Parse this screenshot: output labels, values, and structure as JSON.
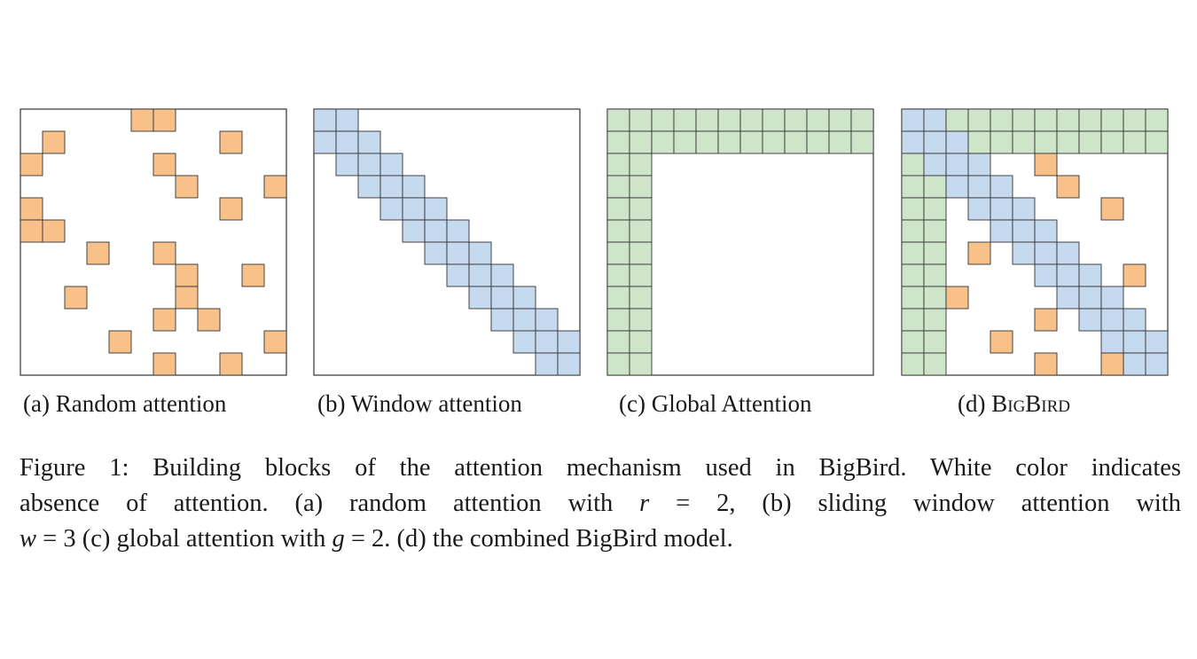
{
  "colors": {
    "random": "#f9c18a",
    "window": "#c5d9ef",
    "global": "#cfe5c9",
    "grid_line": "#333333"
  },
  "matrix_size": 12,
  "panels": [
    {
      "key": "a",
      "label_prefix": "(a) ",
      "label_text": "Random attention",
      "random_cells": [
        [
          0,
          5
        ],
        [
          0,
          6
        ],
        [
          1,
          1
        ],
        [
          1,
          9
        ],
        [
          2,
          0
        ],
        [
          2,
          6
        ],
        [
          3,
          7
        ],
        [
          3,
          11
        ],
        [
          4,
          0
        ],
        [
          4,
          9
        ],
        [
          5,
          0
        ],
        [
          5,
          1
        ],
        [
          6,
          3
        ],
        [
          6,
          6
        ],
        [
          7,
          7
        ],
        [
          7,
          10
        ],
        [
          8,
          2
        ],
        [
          8,
          7
        ],
        [
          9,
          6
        ],
        [
          9,
          8
        ],
        [
          10,
          4
        ],
        [
          10,
          11
        ],
        [
          11,
          6
        ],
        [
          11,
          9
        ]
      ]
    },
    {
      "key": "b",
      "label_prefix": "(b) ",
      "label_text": "Window attention",
      "window_size": 3
    },
    {
      "key": "c",
      "label_prefix": "(c) ",
      "label_text": "Global Attention",
      "global_size": 2
    },
    {
      "key": "d",
      "label_prefix": "(d) ",
      "label_text": "BigBird",
      "window_size": 3,
      "global_size": 2,
      "random_cells": [
        [
          2,
          6
        ],
        [
          3,
          7
        ],
        [
          4,
          9
        ],
        [
          6,
          3
        ],
        [
          7,
          10
        ],
        [
          8,
          2
        ],
        [
          9,
          6
        ],
        [
          10,
          4
        ],
        [
          11,
          6
        ],
        [
          11,
          9
        ]
      ]
    }
  ],
  "caption": {
    "line1": "Figure 1: Building blocks of the attention mechanism used in BigBird. White color indicates",
    "line2_a": "absence of attention. (a) random attention with ",
    "line2_var1": "r",
    "line2_b": " = 2, (b) sliding window attention with",
    "line3_var1": "w",
    "line3_a": " = 3 (c) global attention with ",
    "line3_var2": "g",
    "line3_b": " = 2. (d) the combined BigBird model."
  }
}
